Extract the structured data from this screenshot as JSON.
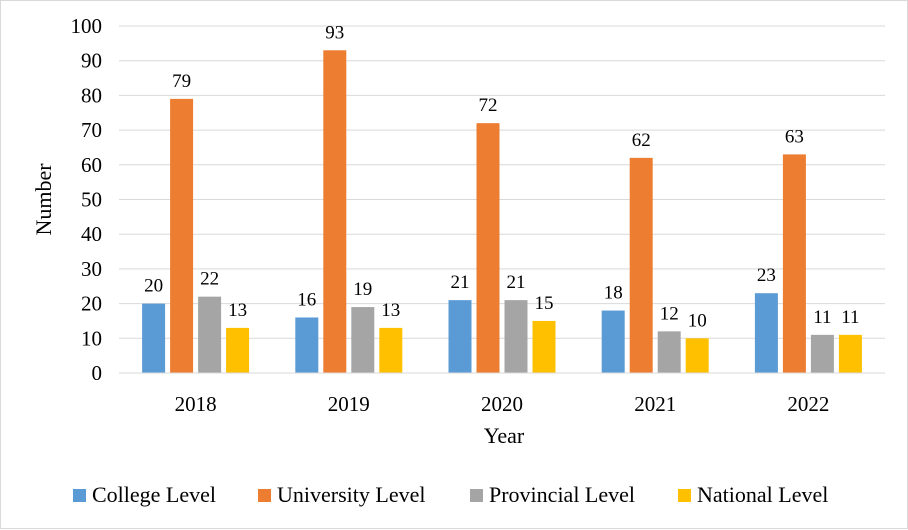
{
  "chart_data": {
    "type": "bar",
    "title": "",
    "xlabel": "Year",
    "ylabel": "Number",
    "ylim": [
      0,
      100
    ],
    "ytick_step": 10,
    "grid": true,
    "legend_position": "bottom",
    "categories": [
      "2018",
      "2019",
      "2020",
      "2021",
      "2022"
    ],
    "series": [
      {
        "name": "College Level",
        "color": "#5b9bd5",
        "values": [
          20,
          16,
          21,
          18,
          23
        ]
      },
      {
        "name": "University Level",
        "color": "#ed7d31",
        "values": [
          79,
          93,
          72,
          62,
          63
        ]
      },
      {
        "name": "Provincial Level",
        "color": "#a5a5a5",
        "values": [
          22,
          19,
          21,
          12,
          11
        ]
      },
      {
        "name": "National Level",
        "color": "#ffc000",
        "values": [
          13,
          13,
          15,
          10,
          11
        ]
      }
    ]
  }
}
